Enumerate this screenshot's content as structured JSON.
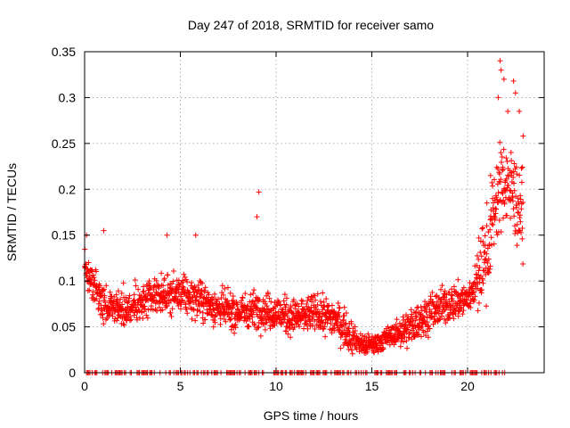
{
  "chart_data": {
    "type": "scatter",
    "title": "Day 247 of 2018, SRMTID for receiver samo",
    "xlabel": "GPS time / hours",
    "ylabel": "SRMTID / TECUs",
    "xlim": [
      0,
      24
    ],
    "ylim": [
      0,
      0.35
    ],
    "x_ticks": [
      0,
      5,
      10,
      15,
      20
    ],
    "x_tick_labels": [
      "0",
      "5",
      "10",
      "15",
      "20"
    ],
    "y_ticks": [
      0,
      0.05,
      0.1,
      0.15,
      0.2,
      0.25,
      0.3,
      0.35
    ],
    "y_tick_labels": [
      "0",
      "0.05",
      "0.1",
      "0.15",
      "0.2",
      "0.25",
      "0.3",
      "0.35"
    ],
    "grid": true,
    "marker": "+",
    "color": "#ff0000",
    "series": [
      {
        "name": "SRMTID",
        "trend": {
          "x": [
            0.0,
            0.3,
            1.0,
            2.0,
            3.0,
            4.0,
            5.0,
            6.0,
            7.0,
            8.0,
            9.0,
            10.0,
            11.0,
            12.0,
            13.0,
            14.0,
            14.5,
            15.0,
            16.0,
            17.0,
            18.0,
            19.0,
            20.0,
            20.5,
            21.0,
            21.5,
            22.0,
            22.5,
            22.9
          ],
          "y": [
            0.12,
            0.1,
            0.075,
            0.07,
            0.075,
            0.085,
            0.085,
            0.08,
            0.07,
            0.065,
            0.07,
            0.065,
            0.06,
            0.065,
            0.06,
            0.04,
            0.03,
            0.03,
            0.04,
            0.05,
            0.065,
            0.075,
            0.08,
            0.1,
            0.13,
            0.19,
            0.21,
            0.19,
            0.17
          ]
        },
        "spikes": [
          {
            "x": 0.1,
            "y": 0.15
          },
          {
            "x": 1.0,
            "y": 0.155
          },
          {
            "x": 4.3,
            "y": 0.15
          },
          {
            "x": 5.8,
            "y": 0.15
          },
          {
            "x": 9.1,
            "y": 0.197
          },
          {
            "x": 9.0,
            "y": 0.17
          },
          {
            "x": 21.2,
            "y": 0.215
          },
          {
            "x": 21.6,
            "y": 0.3
          },
          {
            "x": 21.7,
            "y": 0.34
          },
          {
            "x": 21.75,
            "y": 0.33
          },
          {
            "x": 21.9,
            "y": 0.32
          },
          {
            "x": 22.1,
            "y": 0.285
          },
          {
            "x": 22.4,
            "y": 0.318
          },
          {
            "x": 22.5,
            "y": 0.305
          },
          {
            "x": 22.7,
            "y": 0.285
          },
          {
            "x": 22.9,
            "y": 0.258
          }
        ],
        "zero_points_x_range": [
          0.1,
          22.0
        ]
      }
    ]
  }
}
